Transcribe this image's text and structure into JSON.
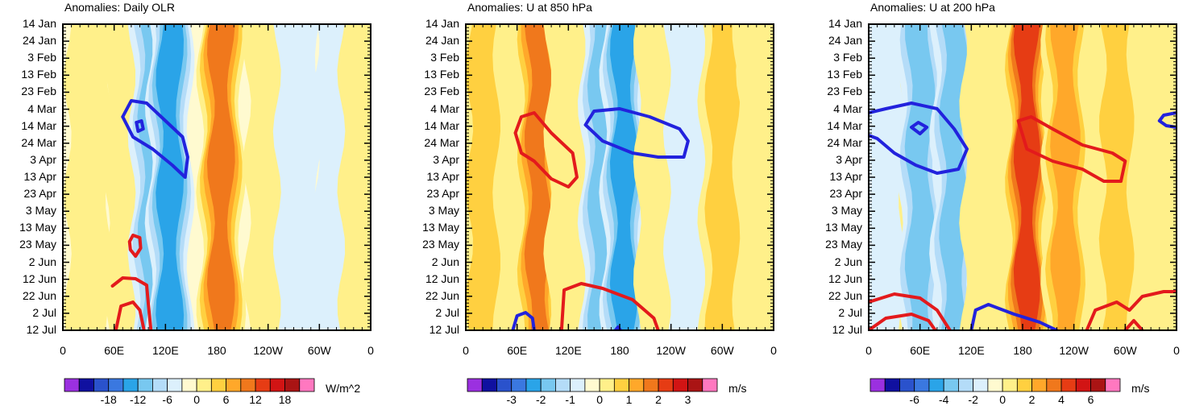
{
  "chart_data": [
    {
      "type": "heatmap",
      "title": "Anomalies: Daily OLR",
      "y_tick_labels": [
        "14 Jan",
        "24 Jan",
        "3 Feb",
        "13 Feb",
        "23 Feb",
        "4 Mar",
        "14 Mar",
        "24 Mar",
        "3 Apr",
        "13 Apr",
        "23 Apr",
        "3 May",
        "13 May",
        "23 May",
        "2 Jun",
        "12 Jun",
        "22 Jun",
        "2 Jul",
        "12 Jul"
      ],
      "x_tick_labels": [
        "0",
        "60E",
        "120E",
        "180",
        "120W",
        "60W",
        "0"
      ],
      "xlim_deg_east": [
        0,
        360
      ],
      "colorbar": {
        "tick_labels": [
          "-18",
          "-12",
          "-6",
          "0",
          "6",
          "12",
          "18"
        ],
        "units": "W/m^2",
        "colors": [
          "#9b30e0",
          "#1010a0",
          "#2a52cc",
          "#3a78e0",
          "#2aa4e8",
          "#78c8f0",
          "#b4dcf8",
          "#dcf0fc",
          "#fffad0",
          "#fff08a",
          "#ffd040",
          "#ffa82a",
          "#f0781c",
          "#e63c14",
          "#d21414",
          "#aa1414",
          "#ff78c0"
        ]
      },
      "bands": [
        {
          "center_lon": 30,
          "value": 1.5
        },
        {
          "center_lon": 75,
          "value": 2
        },
        {
          "center_lon": 105,
          "value": -9
        },
        {
          "center_lon": 125,
          "value": -13
        },
        {
          "center_lon": 185,
          "value": 11
        },
        {
          "center_lon": 240,
          "value": 2
        },
        {
          "center_lon": 275,
          "value": -4
        },
        {
          "center_lon": 320,
          "value": -2
        },
        {
          "center_lon": 350,
          "value": 2
        }
      ],
      "contours": [
        {
          "color": "#e31a1c",
          "points": [
            [
              58,
              355
            ],
            [
              70,
              345
            ],
            [
              85,
              346
            ],
            [
              98,
              354
            ],
            [
              100,
              378
            ],
            [
              103,
              410
            ]
          ]
        },
        {
          "color": "#e31a1c",
          "points": [
            [
              62,
              410
            ],
            [
              68,
              380
            ],
            [
              82,
              375
            ],
            [
              90,
              385
            ],
            [
              95,
              410
            ]
          ]
        },
        {
          "color": "#e31a1c",
          "points": [
            [
              78,
              300
            ],
            [
              82,
              292
            ],
            [
              90,
              295
            ],
            [
              91,
              308
            ],
            [
              85,
              318
            ],
            [
              79,
              310
            ],
            [
              78,
              300
            ]
          ]
        },
        {
          "color": "#2222dd",
          "points": [
            [
              70,
              145
            ],
            [
              80,
              125
            ],
            [
              98,
              128
            ],
            [
              120,
              150
            ],
            [
              140,
              170
            ],
            [
              146,
              195
            ],
            [
              143,
              220
            ],
            [
              128,
              205
            ],
            [
              105,
              185
            ],
            [
              82,
              170
            ],
            [
              70,
              145
            ]
          ]
        },
        {
          "color": "#2222dd",
          "points": [
            [
              86,
              152
            ],
            [
              92,
              150
            ],
            [
              94,
              160
            ],
            [
              88,
              163
            ],
            [
              86,
              152
            ]
          ]
        }
      ]
    },
    {
      "type": "heatmap",
      "title": "Anomalies: U at 850 hPa",
      "y_tick_labels": [
        "14 Jan",
        "24 Jan",
        "3 Feb",
        "13 Feb",
        "23 Feb",
        "4 Mar",
        "14 Mar",
        "24 Mar",
        "3 Apr",
        "13 Apr",
        "23 Apr",
        "3 May",
        "13 May",
        "23 May",
        "2 Jun",
        "12 Jun",
        "22 Jun",
        "2 Jul",
        "12 Jul"
      ],
      "x_tick_labels": [
        "0",
        "60E",
        "120E",
        "180",
        "120W",
        "60W",
        "0"
      ],
      "xlim_deg_east": [
        0,
        360
      ],
      "colorbar": {
        "tick_labels": [
          "-3",
          "-2",
          "-1",
          "0",
          "1",
          "2",
          "3"
        ],
        "units": "m/s",
        "colors": [
          "#9b30e0",
          "#1010a0",
          "#2a52cc",
          "#3a78e0",
          "#2aa4e8",
          "#78c8f0",
          "#b4dcf8",
          "#dcf0fc",
          "#fffad0",
          "#fff08a",
          "#ffd040",
          "#ffa82a",
          "#f0781c",
          "#e63c14",
          "#d21414",
          "#aa1414",
          "#ff78c0"
        ]
      },
      "bands": [
        {
          "center_lon": 20,
          "value": 0.8
        },
        {
          "center_lon": 85,
          "value": 2
        },
        {
          "center_lon": 120,
          "value": 0.5
        },
        {
          "center_lon": 160,
          "value": -1.5
        },
        {
          "center_lon": 185,
          "value": -2.2
        },
        {
          "center_lon": 225,
          "value": 0.4
        },
        {
          "center_lon": 260,
          "value": -0.5
        },
        {
          "center_lon": 300,
          "value": 0.8
        },
        {
          "center_lon": 345,
          "value": 0.4
        }
      ],
      "contours": [
        {
          "color": "#e31a1c",
          "points": [
            [
              58,
              165
            ],
            [
              65,
              145
            ],
            [
              80,
              140
            ],
            [
              100,
              165
            ],
            [
              125,
              190
            ],
            [
              130,
              220
            ],
            [
              120,
              232
            ],
            [
              100,
              222
            ],
            [
              80,
              200
            ],
            [
              65,
              190
            ],
            [
              58,
              165
            ]
          ]
        },
        {
          "color": "#e31a1c",
          "points": [
            [
              112,
              410
            ],
            [
              115,
              360
            ],
            [
              135,
              352
            ],
            [
              160,
              358
            ],
            [
              195,
              372
            ],
            [
              220,
              395
            ],
            [
              225,
              410
            ]
          ]
        },
        {
          "color": "#2222dd",
          "points": [
            [
              140,
              155
            ],
            [
              150,
              138
            ],
            [
              180,
              135
            ],
            [
              215,
              145
            ],
            [
              250,
              160
            ],
            [
              260,
              175
            ],
            [
              255,
              195
            ],
            [
              225,
              195
            ],
            [
              195,
              190
            ],
            [
              160,
              175
            ],
            [
              140,
              155
            ]
          ]
        },
        {
          "color": "#2222dd",
          "points": [
            [
              55,
              410
            ],
            [
              60,
              392
            ],
            [
              70,
              388
            ],
            [
              78,
              395
            ],
            [
              80,
              410
            ]
          ]
        },
        {
          "color": "#2222dd",
          "points": [
            [
              175,
              410
            ],
            [
              178,
              406
            ],
            [
              181,
              410
            ]
          ]
        }
      ]
    },
    {
      "type": "heatmap",
      "title": "Anomalies: U at 200 hPa",
      "y_tick_labels": [
        "14 Jan",
        "24 Jan",
        "3 Feb",
        "13 Feb",
        "23 Feb",
        "4 Mar",
        "14 Mar",
        "24 Mar",
        "3 Apr",
        "13 Apr",
        "23 Apr",
        "3 May",
        "13 May",
        "23 May",
        "2 Jun",
        "12 Jun",
        "22 Jun",
        "2 Jul",
        "12 Jul"
      ],
      "x_tick_labels": [
        "0",
        "60E",
        "120E",
        "180",
        "120W",
        "60W",
        "0"
      ],
      "xlim_deg_east": [
        0,
        360
      ],
      "colorbar": {
        "tick_labels": [
          "-6",
          "-4",
          "-2",
          "0",
          "2",
          "4",
          "6"
        ],
        "units": "m/s",
        "colors": [
          "#9b30e0",
          "#1010a0",
          "#2a52cc",
          "#3a78e0",
          "#2aa4e8",
          "#78c8f0",
          "#b4dcf8",
          "#dcf0fc",
          "#fffad0",
          "#fff08a",
          "#ffd040",
          "#ffa82a",
          "#f0781c",
          "#e63c14",
          "#d21414",
          "#aa1414",
          "#ff78c0"
        ]
      },
      "bands": [
        {
          "center_lon": 15,
          "value": -0.5
        },
        {
          "center_lon": 60,
          "value": -2.5
        },
        {
          "center_lon": 100,
          "value": -3
        },
        {
          "center_lon": 135,
          "value": 0.5
        },
        {
          "center_lon": 185,
          "value": 5
        },
        {
          "center_lon": 230,
          "value": 3
        },
        {
          "center_lon": 290,
          "value": 1.5
        },
        {
          "center_lon": 340,
          "value": 0.5
        }
      ],
      "contours": [
        {
          "color": "#e31a1c",
          "points": [
            [
              175,
              150
            ],
            [
              190,
              145
            ],
            [
              215,
              160
            ],
            [
              250,
              180
            ],
            [
              285,
              190
            ],
            [
              300,
              200
            ],
            [
              295,
              225
            ],
            [
              275,
              225
            ],
            [
              250,
              210
            ],
            [
              215,
              200
            ],
            [
              185,
              185
            ],
            [
              175,
              150
            ]
          ]
        },
        {
          "color": "#e31a1c",
          "points": [
            [
              0,
              375
            ],
            [
              30,
              365
            ],
            [
              60,
              370
            ],
            [
              80,
              385
            ],
            [
              95,
              410
            ]
          ]
        },
        {
          "color": "#e31a1c",
          "points": [
            [
              0,
              410
            ],
            [
              20,
              395
            ],
            [
              50,
              390
            ],
            [
              70,
              398
            ],
            [
              78,
              410
            ]
          ]
        },
        {
          "color": "#e31a1c",
          "points": [
            [
              255,
              410
            ],
            [
              265,
              385
            ],
            [
              290,
              375
            ],
            [
              305,
              385
            ],
            [
              320,
              368
            ],
            [
              345,
              362
            ],
            [
              360,
              362
            ]
          ]
        },
        {
          "color": "#e31a1c",
          "points": [
            [
              300,
              410
            ],
            [
              310,
              398
            ],
            [
              320,
              410
            ]
          ]
        },
        {
          "color": "#2222dd",
          "points": [
            [
              0,
              140
            ],
            [
              20,
              135
            ],
            [
              50,
              128
            ],
            [
              80,
              135
            ],
            [
              100,
              160
            ],
            [
              115,
              185
            ],
            [
              105,
              210
            ],
            [
              80,
              215
            ],
            [
              55,
              205
            ],
            [
              30,
              190
            ],
            [
              10,
              172
            ],
            [
              0,
              168
            ]
          ]
        },
        {
          "color": "#2222dd",
          "points": [
            [
              50,
              158
            ],
            [
              58,
              152
            ],
            [
              68,
              158
            ],
            [
              60,
              166
            ],
            [
              50,
              158
            ]
          ]
        },
        {
          "color": "#2222dd",
          "points": [
            [
              360,
              140
            ],
            [
              345,
              143
            ],
            [
              340,
              150
            ],
            [
              348,
              156
            ],
            [
              360,
              158
            ]
          ]
        },
        {
          "color": "#2222dd",
          "points": [
            [
              120,
              410
            ],
            [
              125,
              385
            ],
            [
              140,
              378
            ],
            [
              170,
              390
            ],
            [
              200,
              400
            ],
            [
              220,
              410
            ]
          ]
        }
      ]
    }
  ]
}
